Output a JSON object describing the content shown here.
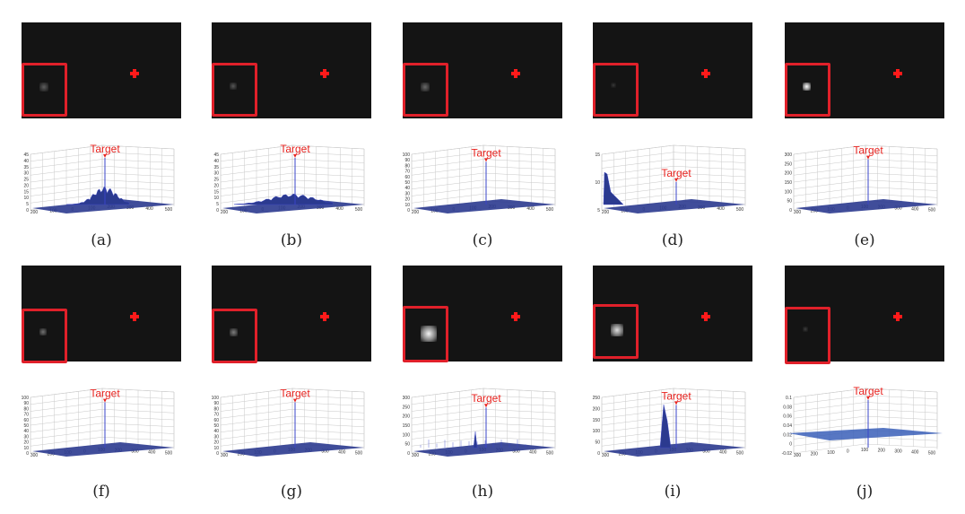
{
  "figure": {
    "target_label": "Target",
    "colors": {
      "box": "#e0202a",
      "marker": "#ff1a1a",
      "surface": "#2b3a8f",
      "peak": "#3a44c8",
      "target_text": "#e8231f"
    },
    "panels": [
      {
        "id": "a",
        "caption": "(a)",
        "spot": {
          "brightness": 0.25
        },
        "plot": {
          "yticks": [
            "45",
            "40",
            "35",
            "30",
            "25",
            "20",
            "15",
            "10",
            "5",
            "0"
          ],
          "xticks": [
            "200",
            "100",
            "0",
            "100",
            "200",
            "300",
            "400",
            "500"
          ],
          "peak_level": 0.93,
          "noise": "mid"
        }
      },
      {
        "id": "b",
        "caption": "(b)",
        "spot": {
          "brightness": 0.22
        },
        "plot": {
          "yticks": [
            "45",
            "40",
            "35",
            "30",
            "25",
            "20",
            "15",
            "10",
            "5",
            "0"
          ],
          "xticks": [
            "200",
            "100",
            "0",
            "100",
            "200",
            "300",
            "400",
            "500"
          ],
          "peak_level": 0.93,
          "noise": "low"
        }
      },
      {
        "id": "c",
        "caption": "(c)",
        "spot": {
          "brightness": 0.3
        },
        "plot": {
          "yticks": [
            "100",
            "90",
            "80",
            "70",
            "60",
            "50",
            "40",
            "30",
            "20",
            "10",
            "0"
          ],
          "xticks": [
            "200",
            "100",
            "0",
            "100",
            "200",
            "300",
            "400",
            "500"
          ],
          "peak_level": 0.85,
          "noise": "flat"
        }
      },
      {
        "id": "d",
        "caption": "(d)",
        "spot": {
          "brightness": 0.08
        },
        "plot": {
          "yticks": [
            "15",
            "10",
            "5"
          ],
          "xticks": [
            "200",
            "100",
            "0",
            "100",
            "200",
            "300",
            "400",
            "500"
          ],
          "peak_level": 0.45,
          "noise": "left-ridge"
        }
      },
      {
        "id": "e",
        "caption": "(e)",
        "spot": {
          "brightness": 1.0
        },
        "plot": {
          "yticks": [
            "300",
            "250",
            "200",
            "150",
            "100",
            "50",
            "0"
          ],
          "xticks": [
            "300",
            "200",
            "100",
            "0",
            "100",
            "200",
            "300",
            "400",
            "500"
          ],
          "peak_level": 0.9,
          "noise": "flat"
        }
      },
      {
        "id": "f",
        "caption": "(f)",
        "spot": {
          "brightness": 0.35
        },
        "plot": {
          "yticks": [
            "100",
            "90",
            "80",
            "70",
            "60",
            "50",
            "40",
            "30",
            "20",
            "10",
            "0"
          ],
          "xticks": [
            "300",
            "200",
            "100",
            "0",
            "100",
            "200",
            "300",
            "400",
            "500"
          ],
          "peak_level": 0.9,
          "noise": "flat"
        }
      },
      {
        "id": "g",
        "caption": "(g)",
        "spot": {
          "brightness": 0.4
        },
        "plot": {
          "yticks": [
            "100",
            "90",
            "80",
            "70",
            "60",
            "50",
            "40",
            "30",
            "20",
            "10",
            "0"
          ],
          "xticks": [
            "300",
            "200",
            "100",
            "0",
            "100",
            "200",
            "300",
            "400",
            "500"
          ],
          "peak_level": 0.9,
          "noise": "flat"
        }
      },
      {
        "id": "h",
        "caption": "(h)",
        "spot": {
          "brightness": 0.95
        },
        "plot": {
          "yticks": [
            "300",
            "250",
            "200",
            "150",
            "100",
            "50",
            "0"
          ],
          "xticks": [
            "300",
            "200",
            "100",
            "0",
            "100",
            "200",
            "300",
            "400",
            "500"
          ],
          "peak_level": 0.8,
          "noise": "spiky"
        }
      },
      {
        "id": "i",
        "caption": "(i)",
        "spot": {
          "brightness": 0.85
        },
        "plot": {
          "yticks": [
            "250",
            "200",
            "150",
            "100",
            "50",
            "0"
          ],
          "xticks": [
            "300",
            "200",
            "100",
            "0",
            "100",
            "200",
            "300",
            "400",
            "500"
          ],
          "peak_level": 0.85,
          "noise": "double"
        }
      },
      {
        "id": "j",
        "caption": "(j)",
        "spot": {
          "brightness": 0.1
        },
        "plot": {
          "yticks": [
            "0.1",
            "0.08",
            "0.06",
            "0.04",
            "0.02",
            "0",
            "-0.02"
          ],
          "xticks": [
            "300",
            "200",
            "100",
            "0",
            "100",
            "200",
            "300",
            "400",
            "500"
          ],
          "peak_level": 0.95,
          "noise": "plane"
        }
      }
    ]
  }
}
